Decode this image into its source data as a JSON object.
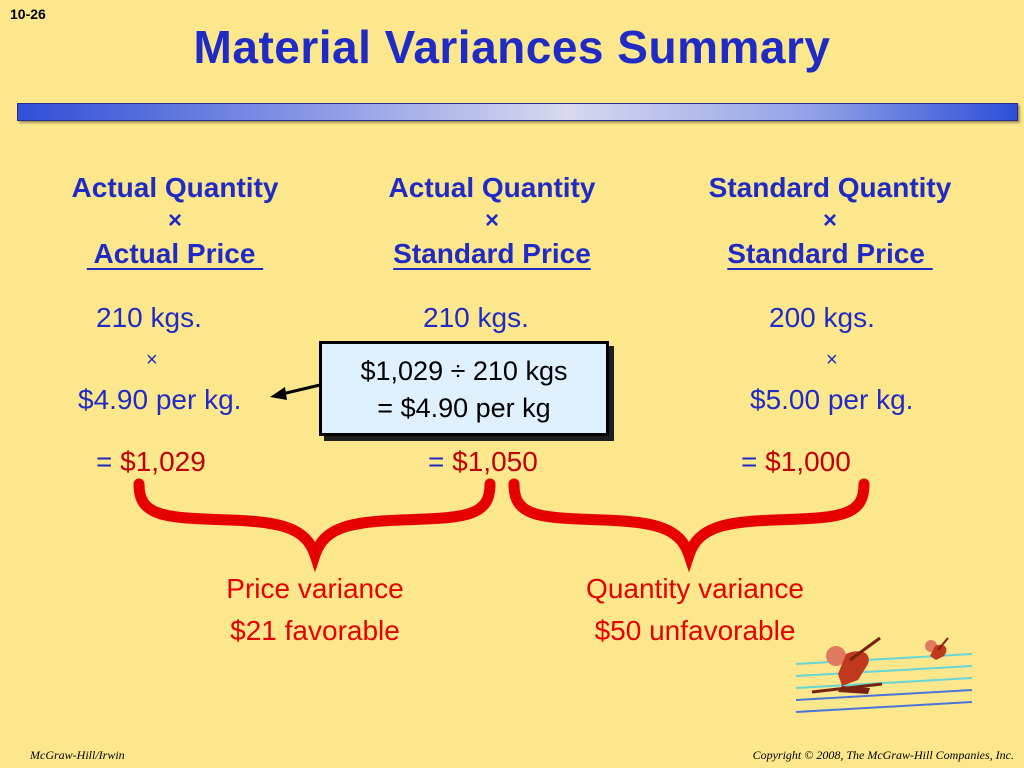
{
  "slide_number": "10-26",
  "title": "Material Variances Summary",
  "columns": [
    {
      "line1": "Actual Quantity",
      "times": "×",
      "line2": " Actual Price ",
      "qty": "210 kgs.",
      "times_small": "×",
      "price": "$4.90 per kg.",
      "equals": "=",
      "result": "$1,029"
    },
    {
      "line1": "Actual Quantity",
      "times": "×",
      "line2": "Standard Price",
      "qty": "210 kgs.",
      "equals": "=",
      "result": "$1,050"
    },
    {
      "line1": "Standard Quantity",
      "times": "×",
      "line2": "Standard Price ",
      "qty": "200 kgs.",
      "times_small": "×",
      "price": "$5.00 per kg.",
      "equals": "=",
      "result": "$1,000"
    }
  ],
  "callout": {
    "line1": "$1,029 ÷ 210 kgs",
    "line2": "= $4.90 per kg"
  },
  "variances": {
    "price": {
      "label": "Price variance",
      "amount": "$21 favorable"
    },
    "quantity": {
      "label": "Quantity variance",
      "amount": "$50 unfavorable"
    }
  },
  "footer": {
    "left": "McGraw-Hill/Irwin",
    "right": "Copyright © 2008, The McGraw-Hill Companies, Inc."
  },
  "colors": {
    "background": "#fde78c",
    "heading": "#1f2bc4",
    "variance": "#e60000",
    "brace": "#e60000",
    "callout_bg": "#dff0ff"
  }
}
